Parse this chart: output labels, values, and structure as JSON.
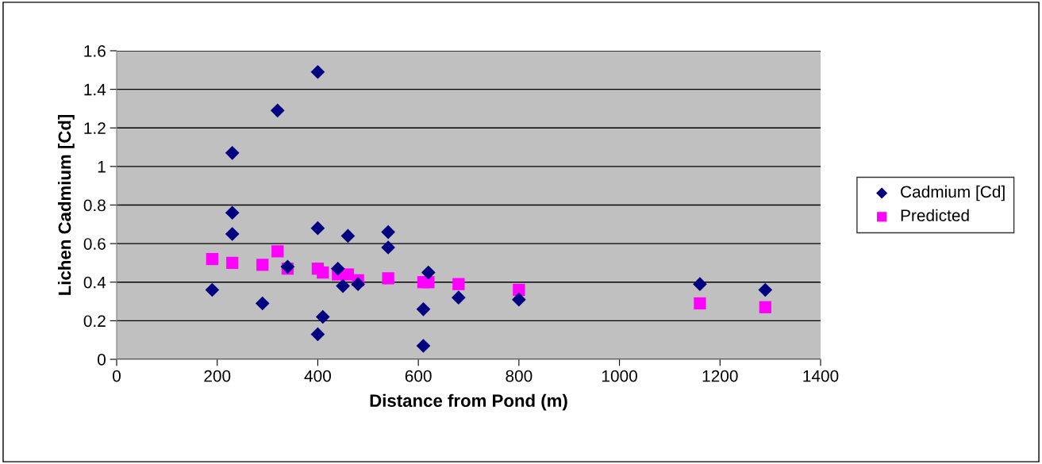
{
  "chart_data": {
    "type": "scatter",
    "xlabel": "Distance from Pond (m)",
    "ylabel": "Lichen Cadmium [Cd]",
    "xlim": [
      0,
      1400
    ],
    "xticks": [
      0,
      200,
      400,
      600,
      800,
      1000,
      1200,
      1400
    ],
    "ylim": [
      0,
      1.6
    ],
    "yticks": [
      0,
      0.2,
      0.4,
      0.6,
      0.8,
      1,
      1.2,
      1.4,
      1.6
    ],
    "grid": "y",
    "legend": "right",
    "series": [
      {
        "name": "Cadmium [Cd]",
        "color": "#000080",
        "marker": "diamond",
        "x": [
          190,
          230,
          230,
          230,
          290,
          320,
          340,
          400,
          400,
          400,
          410,
          440,
          450,
          460,
          480,
          540,
          540,
          610,
          610,
          620,
          680,
          800,
          1160,
          1290
        ],
        "values": [
          0.36,
          1.07,
          0.76,
          0.65,
          0.29,
          1.29,
          0.48,
          1.49,
          0.68,
          0.13,
          0.22,
          0.47,
          0.38,
          0.64,
          0.39,
          0.66,
          0.58,
          0.26,
          0.07,
          0.45,
          0.32,
          0.31,
          0.39,
          0.36
        ]
      },
      {
        "name": "Predicted",
        "color": "#ff00ff",
        "marker": "square",
        "x": [
          190,
          230,
          290,
          320,
          340,
          400,
          410,
          440,
          460,
          480,
          540,
          610,
          620,
          680,
          800,
          1160,
          1290
        ],
        "values": [
          0.52,
          0.5,
          0.49,
          0.56,
          0.47,
          0.47,
          0.45,
          0.44,
          0.44,
          0.41,
          0.42,
          0.4,
          0.4,
          0.39,
          0.36,
          0.29,
          0.27
        ]
      }
    ]
  }
}
